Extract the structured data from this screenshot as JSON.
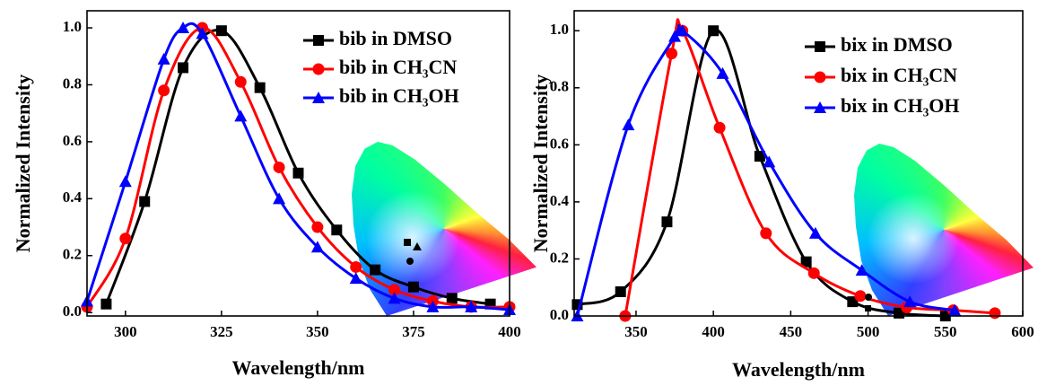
{
  "chart_data": [
    {
      "type": "line",
      "xlabel": "Wavelength/nm",
      "ylabel": "Normalized Intensity",
      "xlim": [
        290,
        400
      ],
      "ylim": [
        -0.012,
        1.06
      ],
      "xticks": [
        300,
        325,
        350,
        375,
        400
      ],
      "yticks": [
        {
          "value": 0,
          "label": "0.0"
        },
        {
          "value": 0.2,
          "label": "0.2"
        },
        {
          "value": 0.4,
          "label": "0.4"
        },
        {
          "value": 0.6,
          "label": "0.6"
        },
        {
          "value": 0.8,
          "label": "0.8"
        },
        {
          "value": 1.0,
          "label": "1.0"
        }
      ],
      "legend": "upper right",
      "series": [
        {
          "name": "bib in DMSO",
          "color": "#000000",
          "marker": "square",
          "x": [
            295,
            305,
            315,
            325,
            335,
            345,
            355,
            365,
            375,
            385,
            395
          ],
          "values": [
            0.03,
            0.39,
            0.86,
            0.99,
            0.79,
            0.49,
            0.29,
            0.15,
            0.09,
            0.05,
            0.03
          ]
        },
        {
          "name": "bib in CH₃CN",
          "color": "#ff0000",
          "marker": "circle",
          "x": [
            290,
            300,
            310,
            320,
            330,
            340,
            350,
            360,
            370,
            380,
            390,
            400
          ],
          "values": [
            0.02,
            0.26,
            0.78,
            1.0,
            0.81,
            0.51,
            0.3,
            0.16,
            0.08,
            0.04,
            0.02,
            0.02
          ]
        },
        {
          "name": "bib in CH₃OH",
          "color": "#0000ff",
          "marker": "triangle",
          "x": [
            290,
            300,
            310,
            315,
            320,
            330,
            340,
            350,
            360,
            370,
            380,
            390,
            400
          ],
          "values": [
            0.04,
            0.46,
            0.89,
            1.0,
            0.98,
            0.69,
            0.4,
            0.23,
            0.12,
            0.05,
            0.02,
            0.02,
            0.01
          ]
        }
      ]
    },
    {
      "type": "line",
      "xlabel": "Wavelength/nm",
      "ylabel": "Normalized Intensity",
      "xlim": [
        310,
        600
      ],
      "ylim": [
        0,
        1.07
      ],
      "xticks": [
        350,
        400,
        450,
        500,
        550,
        600
      ],
      "yticks": [
        {
          "value": 0,
          "label": "0.0"
        },
        {
          "value": 0.2,
          "label": "0.2"
        },
        {
          "value": 0.4,
          "label": "0.4"
        },
        {
          "value": 0.6,
          "label": "0.6"
        },
        {
          "value": 0.8,
          "label": "0.8"
        },
        {
          "value": 1.0,
          "label": "1.0"
        }
      ],
      "legend": "upper right",
      "series": [
        {
          "name": "bix in DMSO",
          "color": "#000000",
          "marker": "square",
          "x": [
            312,
            340,
            370,
            400,
            430,
            460,
            490,
            520,
            550
          ],
          "values": [
            0.04,
            0.085,
            0.33,
            1.0,
            0.56,
            0.19,
            0.05,
            0.01,
            0.0
          ]
        },
        {
          "name": "bix in CH₃CN",
          "color": "#ff0000",
          "marker": "circle",
          "x": [
            343,
            373,
            380,
            404,
            434,
            465,
            495,
            525,
            555,
            582
          ],
          "values": [
            0.0,
            0.92,
            1.0,
            0.66,
            0.29,
            0.15,
            0.07,
            0.03,
            0.02,
            0.01
          ]
        },
        {
          "name": "bix in CH₃OH",
          "color": "#0000ff",
          "marker": "triangle",
          "x": [
            312,
            345,
            375,
            380,
            406,
            436,
            466,
            496,
            527,
            556
          ],
          "values": [
            0.0,
            0.67,
            0.98,
            1.0,
            0.85,
            0.54,
            0.29,
            0.16,
            0.05,
            0.02
          ]
        }
      ]
    }
  ]
}
